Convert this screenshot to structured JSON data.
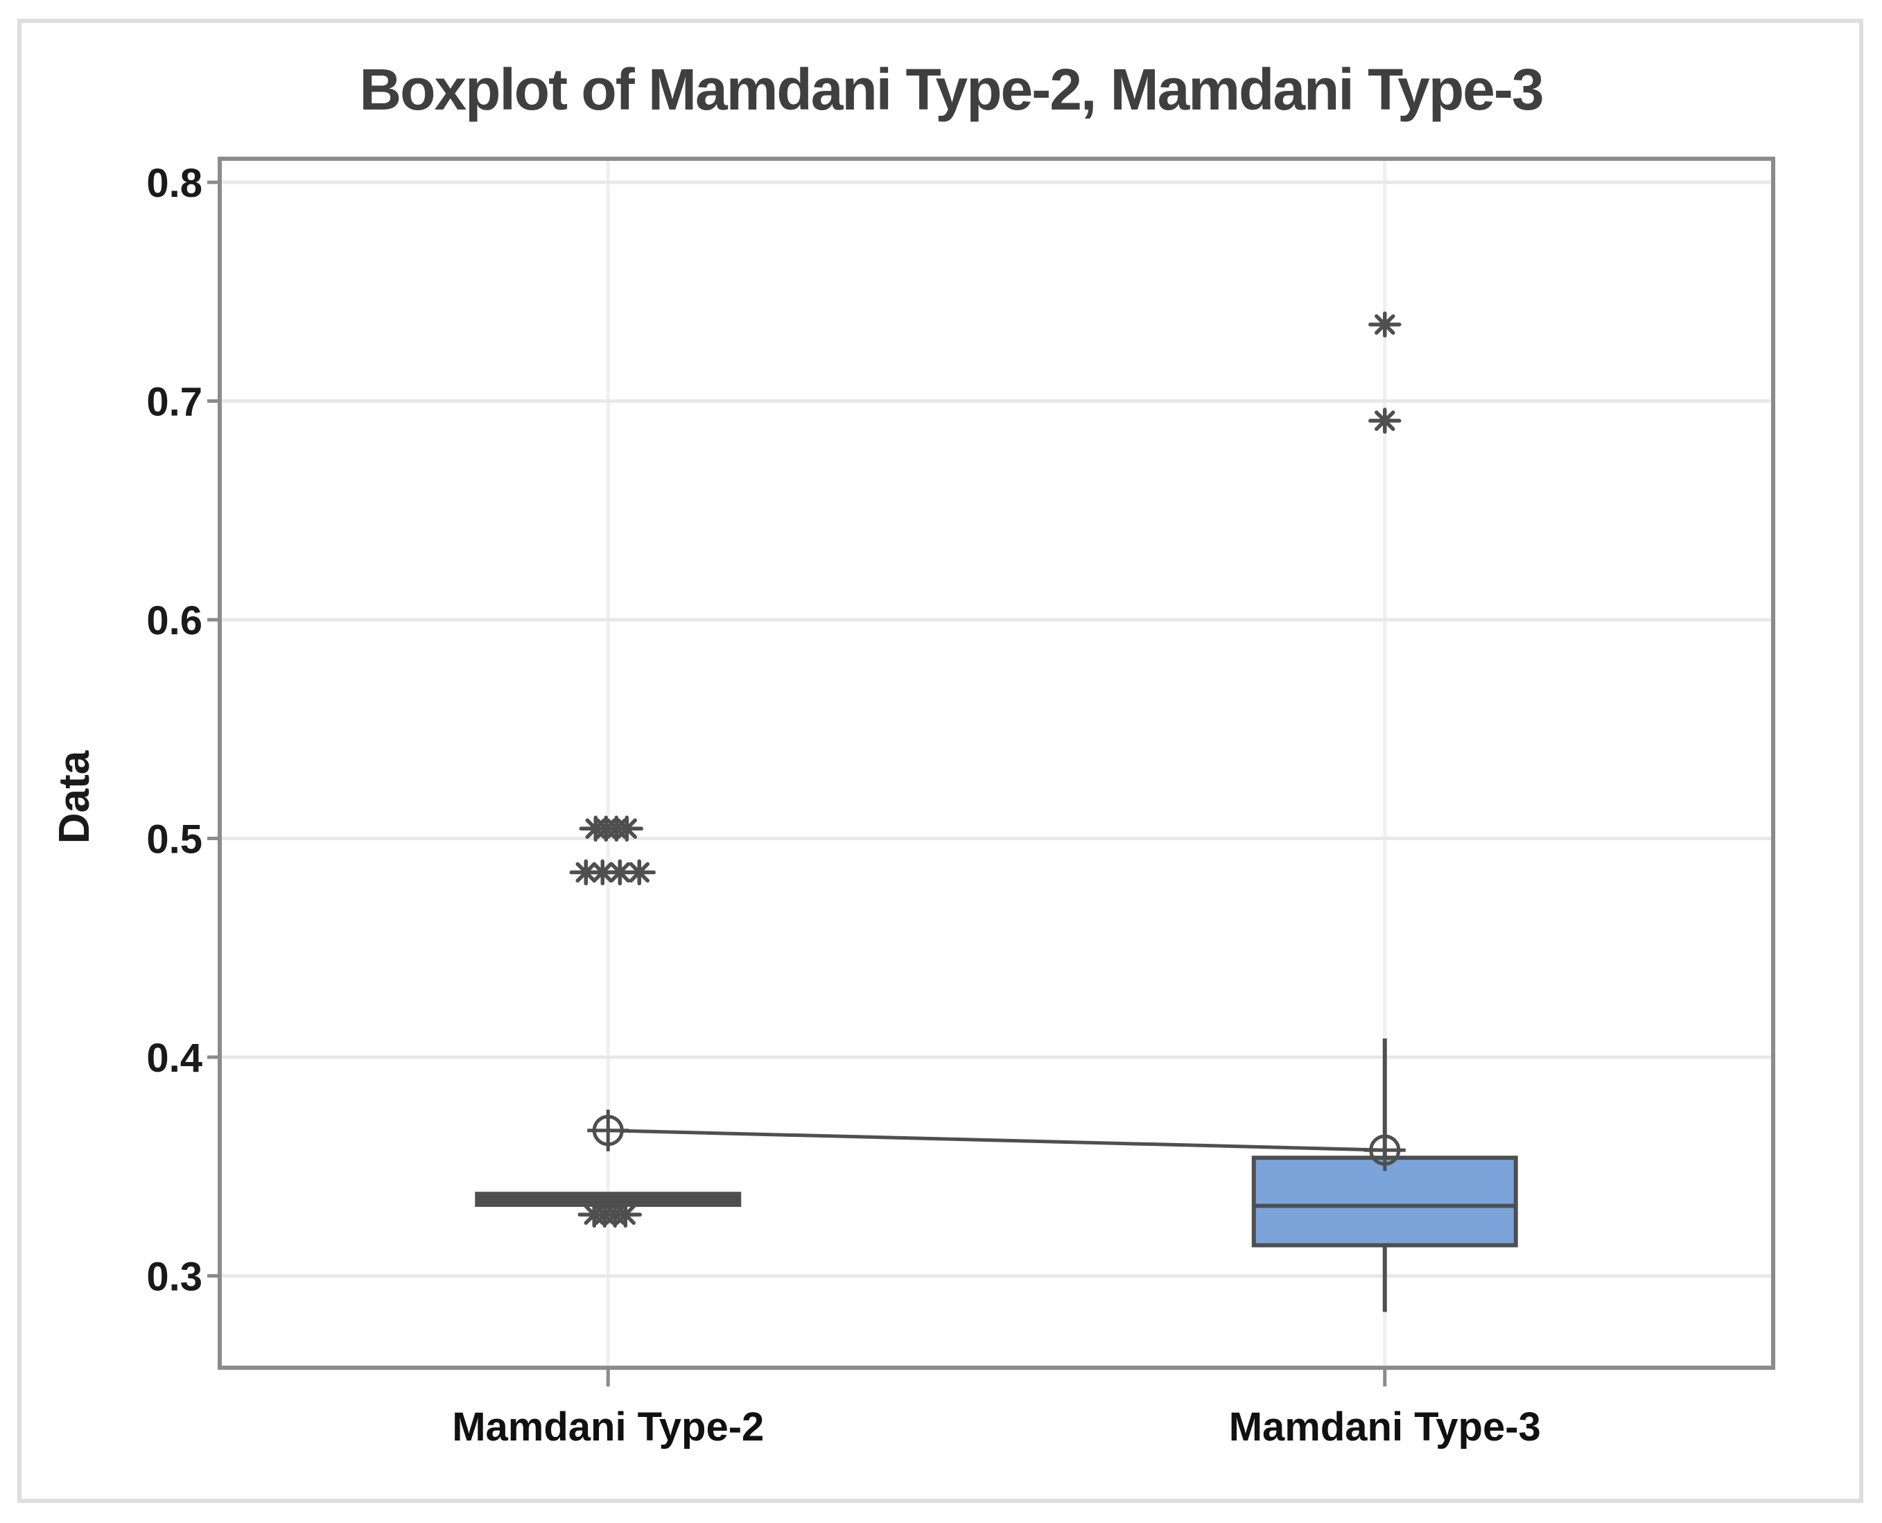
{
  "figure": {
    "background": "#ffffff",
    "outer_border_color": "#dedede",
    "plot_border_color": "#8b8b8b",
    "grid_color_horizontal": "#e8e8e8",
    "grid_color_vertical": "#efefef",
    "title_color": "#3f3f3f",
    "tick_label_color": "#1a1a1a",
    "category_label_color": "#111111"
  },
  "chart_data": {
    "type": "boxplot",
    "title": "Boxplot of Mamdani Type-2, Mamdani Type-3",
    "ylabel": "Data",
    "xlabel": "",
    "categories": [
      "Mamdani Type-2",
      "Mamdani Type-3"
    ],
    "yticks": [
      0.8,
      0.7,
      0.6,
      0.5,
      0.4,
      0.3
    ],
    "ytick_labels": [
      "0.8",
      "0.7",
      "0.6",
      "0.5",
      "0.4",
      "0.3"
    ],
    "ylim_visible": [
      0.258,
      0.811
    ],
    "grid": "horizontal-at-ticks and vertical-at-categories",
    "legend": "none",
    "element_color": "#4f4f4f",
    "mean_connect_line": true,
    "series": [
      {
        "name": "Mamdani Type-2",
        "q1": 0.3325,
        "median": 0.335,
        "q3": 0.3375,
        "whisker_low": 0.3325,
        "whisker_high": 0.3375,
        "mean": 0.3665,
        "box_fill": "#4a4a4a",
        "outlier_groups": [
          {
            "value": 0.5045,
            "dx": [
              -18,
              -3,
              12,
              27
            ]
          },
          {
            "value": 0.4845,
            "dx": [
              -32,
              -8,
              17,
              45
            ]
          },
          {
            "value": 0.328,
            "dx": [
              -20,
              -5,
              10,
              25
            ]
          }
        ]
      },
      {
        "name": "Mamdani Type-3",
        "q1": 0.314,
        "median": 0.332,
        "q3": 0.354,
        "whisker_low": 0.2835,
        "whisker_high": 0.4085,
        "mean": 0.3575,
        "box_fill": "#7ba4da",
        "outlier_groups": [
          {
            "value": 0.735,
            "dx": [
              0
            ]
          },
          {
            "value": 0.691,
            "dx": [
              0
            ]
          }
        ]
      }
    ]
  }
}
